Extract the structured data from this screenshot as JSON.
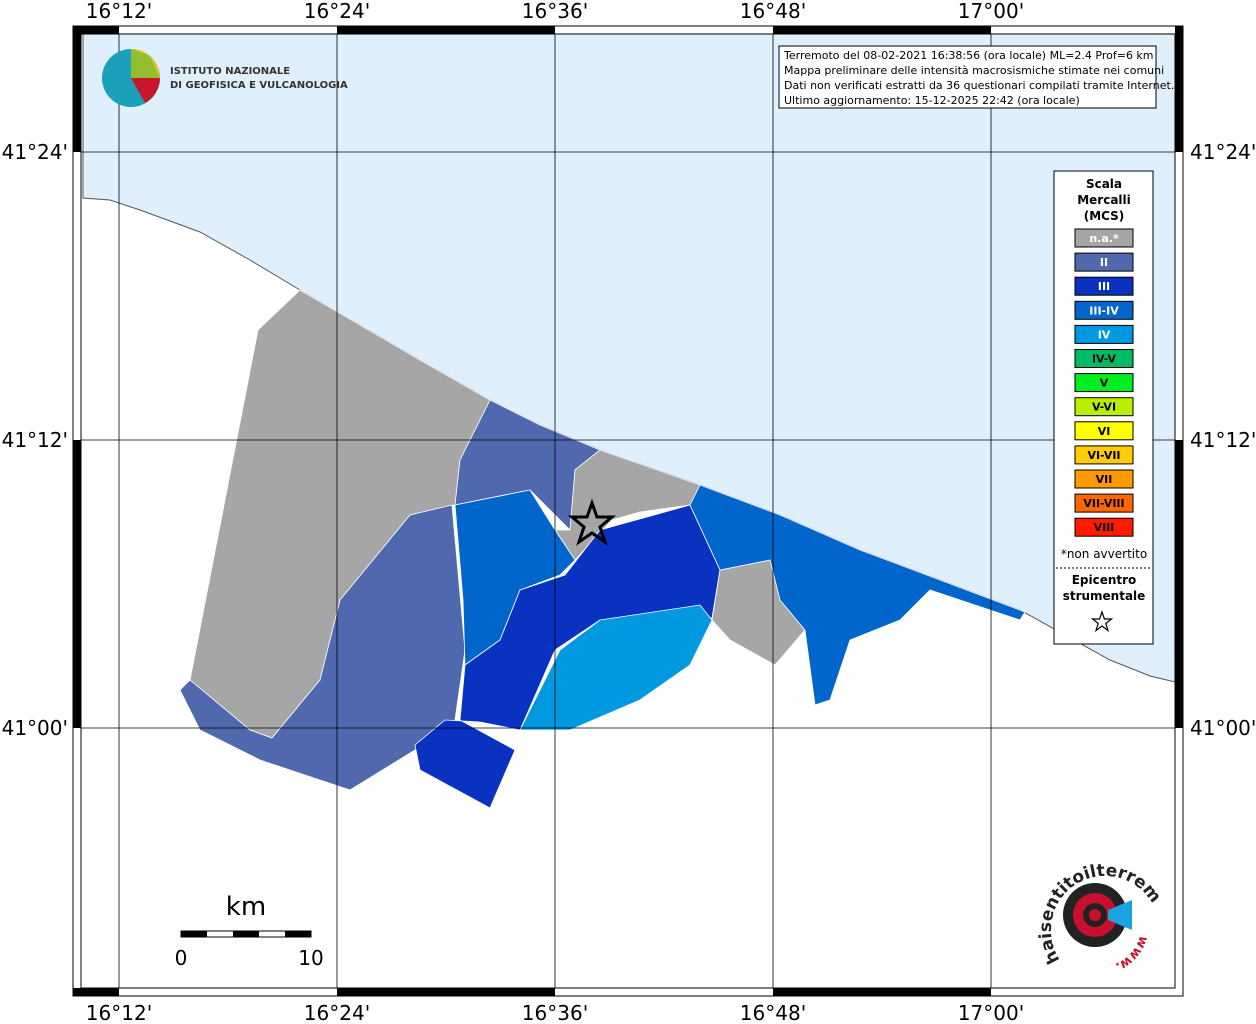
{
  "header": {
    "logo_line1": "ISTITUTO NAZIONALE",
    "logo_line2": "DI GEOFISICA E VULCANOLOGIA"
  },
  "info": [
    "Terremoto del 08-02-2021 16:38:56 (ora locale) ML=2.4 Prof=6 km",
    "Mappa preliminare delle intensità macrosismiche stimate nei comuni",
    "Dati non verificati estratti da 36 questionari compilati tramite Internet.",
    "Ultimo aggiornamento: 15-12-2025 22:42 (ora locale)"
  ],
  "grid": {
    "longitude": [
      "16°12'",
      "16°24'",
      "16°36'",
      "16°48'",
      "17°00'"
    ],
    "latitude": [
      "41°24'",
      "41°12'",
      "41°00'"
    ]
  },
  "legend": {
    "title": [
      "Scala",
      "Mercalli",
      "(MCS)"
    ],
    "classes": [
      {
        "label": "n.a.*",
        "color": "#a6a6a6"
      },
      {
        "label": "II",
        "color": "#5068ae"
      },
      {
        "label": "III",
        "color": "#0a32c0"
      },
      {
        "label": "III-IV",
        "color": "#0066cc"
      },
      {
        "label": "IV",
        "color": "#0099e0"
      },
      {
        "label": "IV-V",
        "color": "#00bb66"
      },
      {
        "label": "V",
        "color": "#00ee22"
      },
      {
        "label": "V-VI",
        "color": "#bbee00"
      },
      {
        "label": "VI",
        "color": "#ffff00"
      },
      {
        "label": "VI-VII",
        "color": "#ffcc00"
      },
      {
        "label": "VII",
        "color": "#ff9900"
      },
      {
        "label": "VII-VIII",
        "color": "#ff6600"
      },
      {
        "label": "VIII",
        "color": "#ff1a00"
      }
    ],
    "note": "*non avvertito",
    "epicenter": [
      "Epicentro",
      "strumentale"
    ]
  },
  "scale_bar": {
    "unit": "km",
    "start": "0",
    "end": "10"
  },
  "footer_logo": {
    "text": "haisentitoilterremoto.it",
    "url": "www."
  }
}
